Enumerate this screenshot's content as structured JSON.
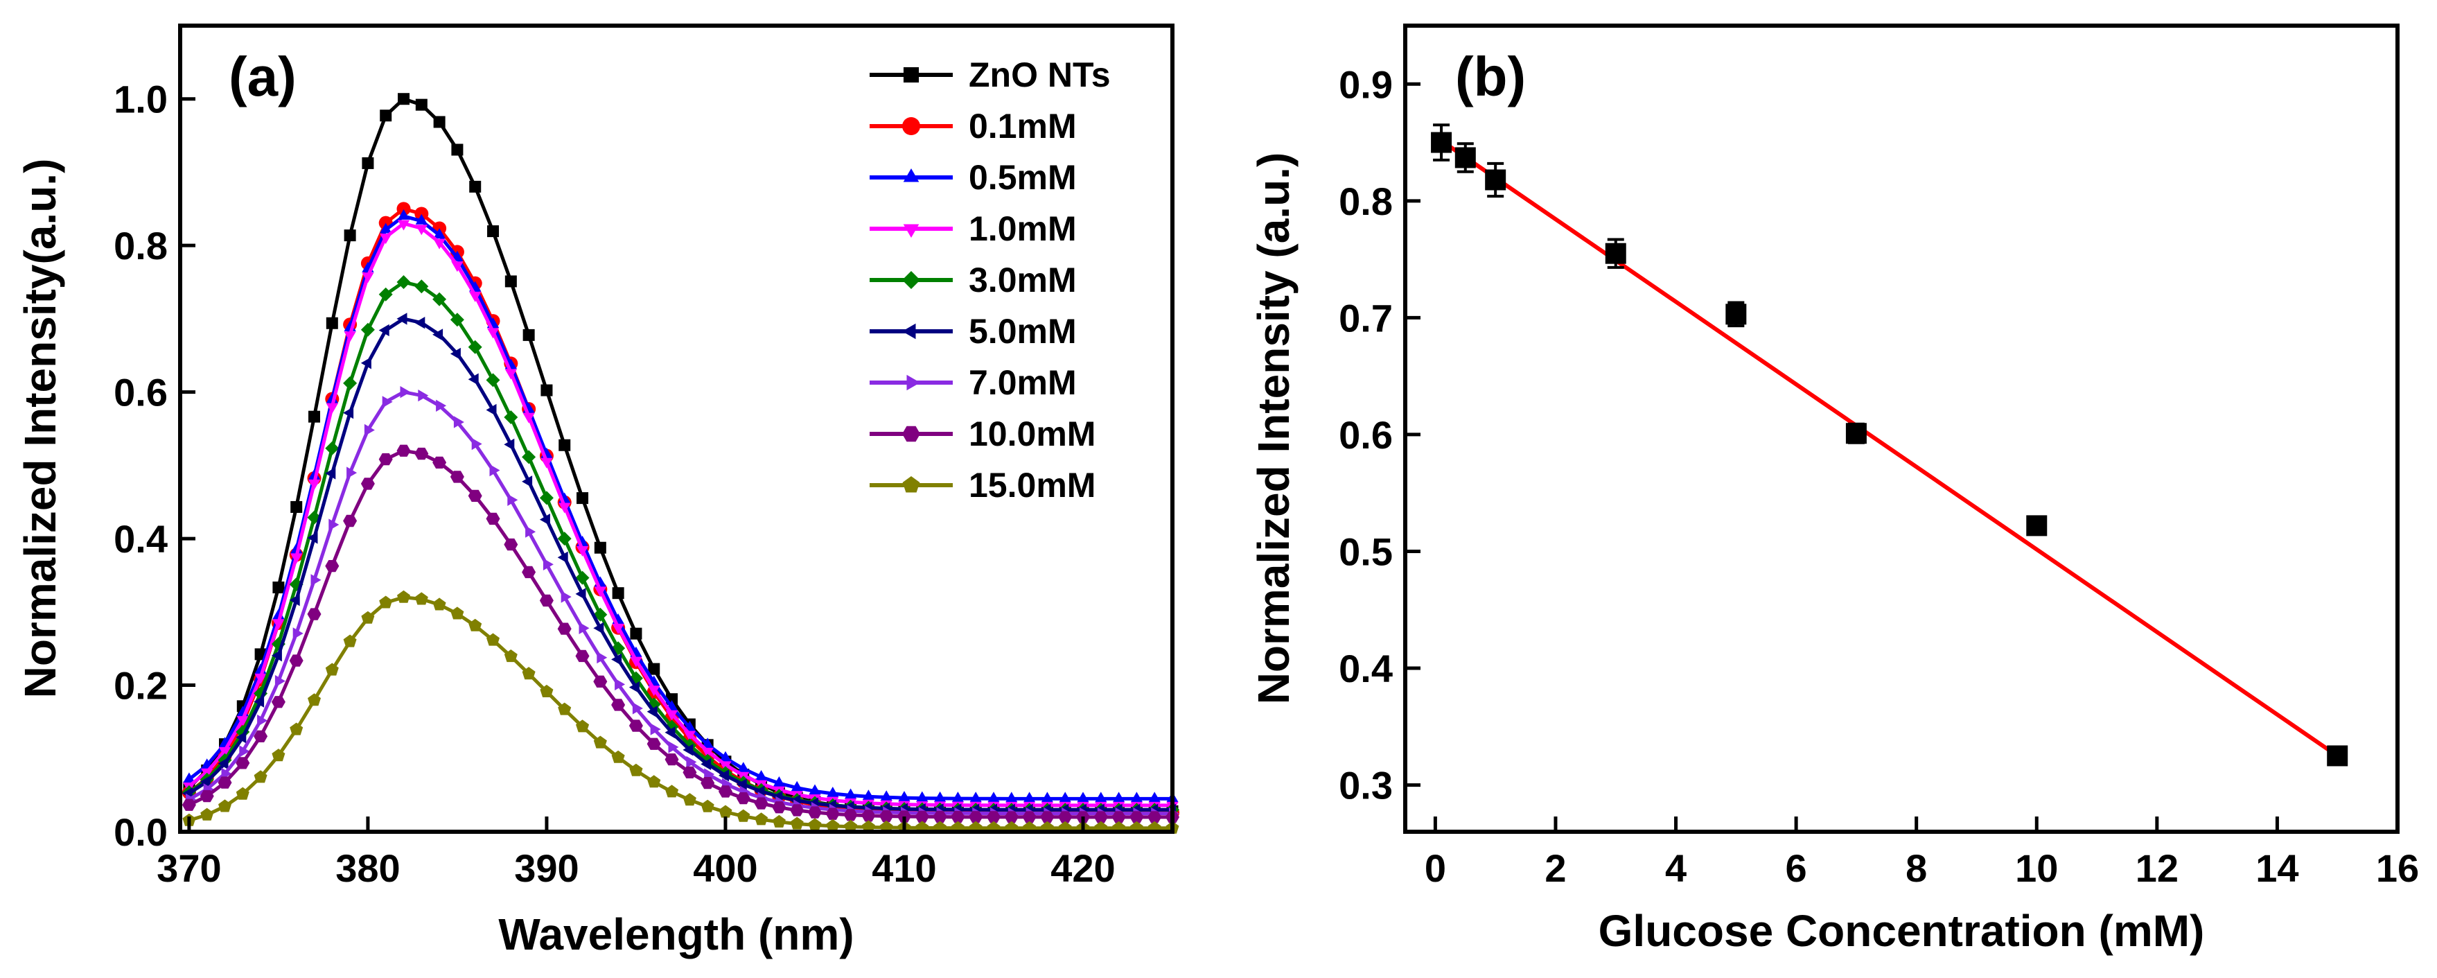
{
  "chart_data": [
    {
      "type": "line",
      "panel_label": "(a)",
      "xlabel": "Wavelength (nm)",
      "ylabel": "Normalized Intensity(a.u.)",
      "xlim": [
        369.5,
        425
      ],
      "ylim": [
        0,
        1.1
      ],
      "xticks": [
        370,
        380,
        390,
        400,
        410,
        420
      ],
      "xtick_labels": [
        "370",
        "380",
        "390",
        "400",
        "410",
        "420"
      ],
      "yticks": [
        0.0,
        0.2,
        0.4,
        0.6,
        0.8,
        1.0
      ],
      "ytick_labels": [
        "0.0",
        "0.2",
        "0.4",
        "0.6",
        "0.8",
        "1.0"
      ],
      "legend_position": "top-right",
      "x_start": 370,
      "x_step": 1,
      "x_end": 425,
      "peak_wavelength": 382,
      "series": [
        {
          "name": "ZnO NTs",
          "peak": 1.0,
          "baseline": 0.028,
          "color": "#000000",
          "marker": "square"
        },
        {
          "name": "0.1mM",
          "peak": 0.85,
          "baseline": 0.026,
          "color": "#ff0000",
          "marker": "circle"
        },
        {
          "name": "0.5mM",
          "peak": 0.84,
          "baseline": 0.045,
          "color": "#0000ff",
          "marker": "triangle-up"
        },
        {
          "name": "1.0mM",
          "peak": 0.83,
          "baseline": 0.036,
          "color": "#ff00ff",
          "marker": "triangle-down"
        },
        {
          "name": "3.0mM",
          "peak": 0.75,
          "baseline": 0.03,
          "color": "#008000",
          "marker": "diamond"
        },
        {
          "name": "5.0mM",
          "peak": 0.7,
          "baseline": 0.03,
          "color": "#000080",
          "marker": "triangle-left"
        },
        {
          "name": "7.0mM",
          "peak": 0.6,
          "baseline": 0.025,
          "color": "#8a2be2",
          "marker": "triangle-right"
        },
        {
          "name": "10.0mM",
          "peak": 0.52,
          "baseline": 0.02,
          "color": "#800080",
          "marker": "hexagon"
        },
        {
          "name": "15.0mM",
          "peak": 0.32,
          "baseline": 0.005,
          "color": "#808000",
          "marker": "pentagon"
        }
      ]
    },
    {
      "type": "scatter",
      "panel_label": "(b)",
      "xlabel": "Glucose Concentration (mM)",
      "ylabel": "Normalized Intensity (a.u.)",
      "xlim": [
        -0.5,
        16
      ],
      "ylim": [
        0.26,
        0.95
      ],
      "xticks": [
        0,
        2,
        4,
        6,
        8,
        10,
        12,
        14,
        16
      ],
      "xtick_labels": [
        "0",
        "2",
        "4",
        "6",
        "8",
        "10",
        "12",
        "14",
        "16"
      ],
      "yticks": [
        0.3,
        0.4,
        0.5,
        0.6,
        0.7,
        0.8,
        0.9
      ],
      "ytick_labels": [
        "0.3",
        "0.4",
        "0.5",
        "0.6",
        "0.7",
        "0.8",
        "0.9"
      ],
      "marker_color": "#000000",
      "fit_color": "#ff0000",
      "points": [
        {
          "x": 0.1,
          "y": 0.85,
          "err": 0.015
        },
        {
          "x": 0.5,
          "y": 0.837,
          "err": 0.012
        },
        {
          "x": 1.0,
          "y": 0.818,
          "err": 0.014
        },
        {
          "x": 3.0,
          "y": 0.755,
          "err": 0.012
        },
        {
          "x": 5.0,
          "y": 0.703,
          "err": 0.01
        },
        {
          "x": 7.0,
          "y": 0.601,
          "err": 0.008
        },
        {
          "x": 10.0,
          "y": 0.522,
          "err": 0.007
        },
        {
          "x": 15.0,
          "y": 0.325,
          "err": 0.004
        }
      ],
      "fit_line": {
        "x0": 0,
        "y0": 0.855,
        "x1": 15.0,
        "y1": 0.325
      }
    }
  ]
}
